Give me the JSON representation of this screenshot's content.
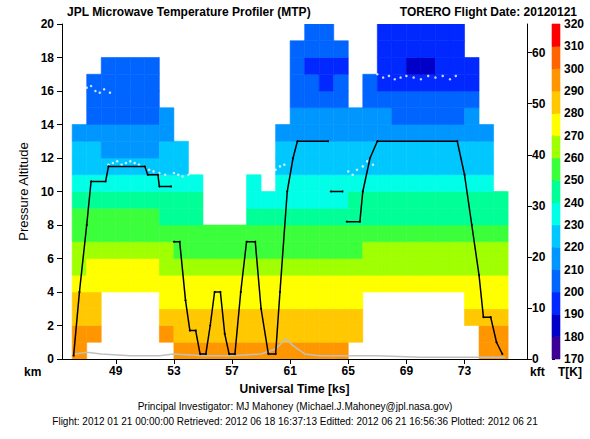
{
  "chart_data": {
    "type": "heatmap",
    "title": "JPL Microwave Temperature Profiler (MTP)",
    "subtitle": "TORERO Flight Date: 20120121",
    "xlabel": "Universal Time [ks]",
    "ylabel": "Pressure Altitude",
    "yunit": "km",
    "y2label": "kft",
    "footnotes": [
      "Principal Investigator: MJ Mahoney (Michael.J.Mahoney@jpl.nasa.gov)",
      "Flight: 2012 01 21 00:00:00 Retrieved: 2012 06 18 16:37:13 Editted: 2012 06 21 16:56:36 Plotted: 2012 06 21"
    ],
    "xlim": [
      45.3,
      77.3
    ],
    "xticks": [
      49,
      53,
      57,
      61,
      65,
      69,
      73
    ],
    "ylim": [
      0,
      20
    ],
    "yticks": [
      0,
      2,
      4,
      6,
      8,
      10,
      12,
      14,
      16,
      18,
      20
    ],
    "y2lim": [
      0,
      65.6168
    ],
    "y2ticks": [
      0,
      10,
      20,
      30,
      40,
      50,
      60
    ],
    "grid": false,
    "heatmap": {
      "x_edges": [
        46,
        47,
        48,
        49,
        50,
        51,
        52,
        53,
        54,
        55,
        56,
        57,
        58,
        59,
        60,
        61,
        62,
        63,
        64,
        65,
        66,
        67,
        68,
        69,
        70,
        71,
        72,
        73,
        74,
        75,
        76
      ],
      "y_edges": [
        0,
        1,
        2,
        3,
        4,
        5,
        6,
        7,
        8,
        9,
        10,
        11,
        12,
        13,
        14,
        15,
        16,
        17,
        18,
        19,
        20
      ],
      "cells": [
        [
          298,
          null,
          null,
          null,
          null,
          null,
          null,
          294,
          294,
          293,
          293,
          293,
          293,
          293,
          292,
          292,
          292,
          293,
          293,
          null,
          null,
          null,
          null,
          null,
          null,
          null,
          null,
          null,
          295,
          295
        ],
        [
          292,
          293,
          null,
          null,
          null,
          null,
          290,
          289,
          289,
          288,
          288,
          288,
          288,
          288,
          287,
          287,
          287,
          288,
          288,
          289,
          null,
          null,
          null,
          null,
          null,
          null,
          null,
          null,
          290,
          290
        ],
        [
          287,
          288,
          null,
          null,
          null,
          null,
          285,
          284,
          284,
          283,
          283,
          283,
          283,
          283,
          282,
          282,
          282,
          283,
          283,
          284,
          null,
          null,
          null,
          null,
          null,
          null,
          null,
          285,
          285,
          285
        ],
        [
          281,
          282,
          null,
          null,
          null,
          null,
          279,
          278,
          278,
          277,
          277,
          277,
          277,
          277,
          276,
          276,
          276,
          277,
          277,
          278,
          null,
          null,
          null,
          null,
          null,
          null,
          null,
          279,
          279,
          279
        ],
        [
          275,
          276,
          276,
          276,
          276,
          276,
          273,
          272,
          272,
          271,
          271,
          271,
          271,
          271,
          270,
          270,
          270,
          271,
          271,
          272,
          274,
          274,
          274,
          274,
          274,
          274,
          274,
          273,
          273,
          273
        ],
        [
          269,
          270,
          270,
          270,
          270,
          270,
          267,
          266,
          266,
          265,
          265,
          265,
          265,
          265,
          264,
          264,
          264,
          265,
          265,
          266,
          268,
          268,
          268,
          268,
          268,
          268,
          268,
          267,
          267,
          267
        ],
        [
          262,
          263,
          263,
          263,
          263,
          263,
          260,
          259,
          259,
          258,
          258,
          258,
          258,
          258,
          257,
          257,
          257,
          258,
          258,
          259,
          261,
          261,
          261,
          261,
          261,
          261,
          261,
          260,
          260,
          260
        ],
        [
          256,
          257,
          257,
          257,
          257,
          257,
          254,
          253,
          253,
          252,
          252,
          252,
          252,
          252,
          251,
          251,
          251,
          252,
          252,
          253,
          255,
          255,
          255,
          255,
          255,
          255,
          255,
          254,
          254,
          254
        ],
        [
          250,
          251,
          251,
          251,
          251,
          251,
          248,
          247,
          247,
          null,
          null,
          null,
          246,
          246,
          245,
          245,
          245,
          246,
          246,
          247,
          249,
          249,
          249,
          249,
          249,
          249,
          249,
          248,
          248,
          248
        ],
        [
          243,
          244,
          244,
          244,
          244,
          244,
          241,
          240,
          240,
          null,
          null,
          null,
          239,
          239,
          238,
          238,
          238,
          239,
          239,
          240,
          242,
          242,
          242,
          242,
          242,
          242,
          242,
          241,
          241,
          241
        ],
        [
          236,
          237,
          237,
          237,
          237,
          237,
          234,
          233,
          233,
          null,
          null,
          null,
          232,
          null,
          232,
          232,
          232,
          233,
          233,
          234,
          235,
          235,
          235,
          235,
          235,
          235,
          235,
          234,
          234,
          null
        ],
        [
          229,
          228,
          227,
          226,
          226,
          226,
          227,
          227,
          null,
          null,
          null,
          null,
          null,
          null,
          226,
          226,
          226,
          227,
          227,
          227,
          229,
          229,
          229,
          229,
          229,
          229,
          229,
          228,
          228,
          null
        ],
        [
          222,
          220,
          219,
          218,
          218,
          218,
          220,
          221,
          null,
          null,
          null,
          null,
          null,
          null,
          220,
          220,
          220,
          221,
          221,
          221,
          223,
          222,
          222,
          222,
          222,
          222,
          222,
          222,
          222,
          null
        ],
        [
          216,
          214,
          213,
          212,
          212,
          212,
          215,
          null,
          null,
          null,
          null,
          null,
          null,
          null,
          215,
          214,
          214,
          215,
          215,
          216,
          218,
          217,
          216,
          216,
          216,
          216,
          216,
          216,
          216,
          null
        ],
        [
          null,
          209,
          208,
          208,
          208,
          208,
          210,
          null,
          null,
          null,
          null,
          null,
          null,
          null,
          null,
          210,
          210,
          211,
          211,
          212,
          211,
          210,
          209,
          209,
          209,
          209,
          209,
          210,
          null,
          null
        ],
        [
          null,
          205,
          205,
          206,
          206,
          206,
          null,
          null,
          null,
          null,
          null,
          null,
          null,
          null,
          null,
          206,
          205,
          205,
          206,
          null,
          207,
          204,
          203,
          203,
          203,
          203,
          203,
          204,
          null,
          null
        ],
        [
          null,
          204,
          205,
          206,
          207,
          207,
          null,
          null,
          null,
          null,
          null,
          null,
          null,
          null,
          null,
          202,
          200,
          199,
          200,
          null,
          203,
          196,
          194,
          194,
          194,
          194,
          195,
          198,
          null,
          null
        ],
        [
          null,
          null,
          207,
          208,
          209,
          209,
          null,
          null,
          null,
          null,
          null,
          null,
          null,
          null,
          null,
          200,
          198,
          197,
          199,
          null,
          null,
          192,
          190,
          189,
          189,
          190,
          191,
          195,
          null,
          null
        ],
        [
          null,
          null,
          null,
          null,
          null,
          null,
          null,
          null,
          null,
          null,
          null,
          null,
          null,
          null,
          null,
          203,
          201,
          200,
          202,
          null,
          null,
          192,
          191,
          190,
          190,
          191,
          193,
          null,
          null,
          null
        ],
        [
          null,
          null,
          null,
          null,
          null,
          null,
          null,
          null,
          null,
          null,
          null,
          null,
          null,
          null,
          null,
          null,
          205,
          204,
          null,
          null,
          null,
          195,
          194,
          193,
          193,
          194,
          196,
          null,
          null,
          null
        ]
      ]
    },
    "colorbar": {
      "label": "T[K]",
      "range": [
        170,
        320
      ],
      "ticks": [
        170,
        180,
        190,
        200,
        210,
        220,
        230,
        240,
        250,
        260,
        270,
        280,
        290,
        300,
        310,
        320
      ],
      "colors": [
        "#3c0096",
        "#0000c8",
        "#0028ff",
        "#0064ff",
        "#0096ff",
        "#00c8ff",
        "#00ffe6",
        "#00ff96",
        "#3cff3c",
        "#a0ff00",
        "#ffff00",
        "#ffc800",
        "#ff9600",
        "#ff6400",
        "#ff0000"
      ]
    },
    "series": [
      {
        "type": "line",
        "color": "#c0c0c0",
        "marker": "none",
        "x": [
          46.2,
          47,
          48,
          50,
          52,
          53,
          55,
          57,
          59,
          60,
          60.7,
          61.2,
          62,
          63,
          65,
          67,
          70,
          73,
          75,
          75.8
        ],
        "values": [
          0.3,
          0.4,
          0.3,
          0.2,
          0.2,
          0.3,
          0.2,
          0.2,
          0.3,
          0.6,
          1.2,
          0.8,
          0.3,
          0.2,
          0.2,
          0.2,
          0.1,
          0.1,
          0.1,
          0.1
        ]
      },
      {
        "type": "scatter",
        "color": "#ffffff",
        "marker": "circle",
        "x": [
          46.8,
          47,
          47.3,
          47.6,
          47.9,
          48.2,
          48.6,
          48.5,
          48.8,
          49.1,
          49.4,
          49.7,
          50,
          50.3,
          50.6,
          51,
          51.3,
          51.6,
          52,
          52.4,
          53,
          53.3,
          53.6,
          54,
          60,
          60.3,
          60.6,
          65,
          65.3,
          65.6,
          66,
          66.3,
          66.7,
          67,
          67.4,
          67.8,
          68.2,
          68.6,
          69,
          69.5,
          70,
          70.5,
          71,
          71.5,
          72,
          72.4
        ],
        "values": [
          16.5,
          16.2,
          16.3,
          16,
          15.9,
          16.1,
          15.9,
          11.6,
          11.7,
          11.8,
          11.6,
          11.7,
          11.8,
          11.7,
          11.6,
          11.5,
          11.3,
          11.2,
          11.1,
          11,
          11.1,
          11,
          10.9,
          11,
          11.3,
          11.5,
          11.6,
          11.2,
          11,
          11.3,
          11.5,
          11.8,
          11.6,
          17,
          16.8,
          16.9,
          16.7,
          16.8,
          16.9,
          16.8,
          16.7,
          16.9,
          16.8,
          16.9,
          16.7,
          16.9
        ]
      },
      {
        "type": "line",
        "color": "#000000",
        "marker": "circle",
        "x": [
          46.1,
          46.5,
          47,
          47.3,
          48.3,
          48.5,
          51,
          51.2,
          51.9,
          52,
          52.8,
          52.9,
          53,
          53.4,
          53.8,
          54.1,
          54.5,
          54.8,
          55.2,
          55.5,
          55.8,
          56.2,
          56.5,
          56.8,
          57.2,
          57.6,
          58,
          58.6,
          59,
          59.5,
          60,
          60.3,
          60.8,
          61.2,
          61.5,
          63.6,
          63.7,
          63.8,
          64.6,
          64.7,
          64.9,
          65.8,
          66,
          66.5,
          67,
          72.5,
          73,
          73.5,
          74,
          74.3,
          74.8,
          75.2,
          75.6
        ],
        "values": [
          0.2,
          4,
          8,
          10.6,
          10.6,
          11.5,
          11.5,
          11,
          11,
          10.3,
          10.3,
          null,
          7,
          7,
          3.5,
          1.7,
          1.7,
          0.3,
          0.3,
          2,
          4,
          4,
          1.5,
          0.3,
          0.3,
          4,
          7,
          7,
          3,
          0.3,
          0.3,
          4,
          10,
          12,
          13,
          13,
          null,
          10,
          10,
          null,
          8.2,
          8.2,
          10,
          12,
          13,
          13,
          11,
          8,
          5,
          2.5,
          2.5,
          1,
          0.3
        ]
      }
    ]
  }
}
